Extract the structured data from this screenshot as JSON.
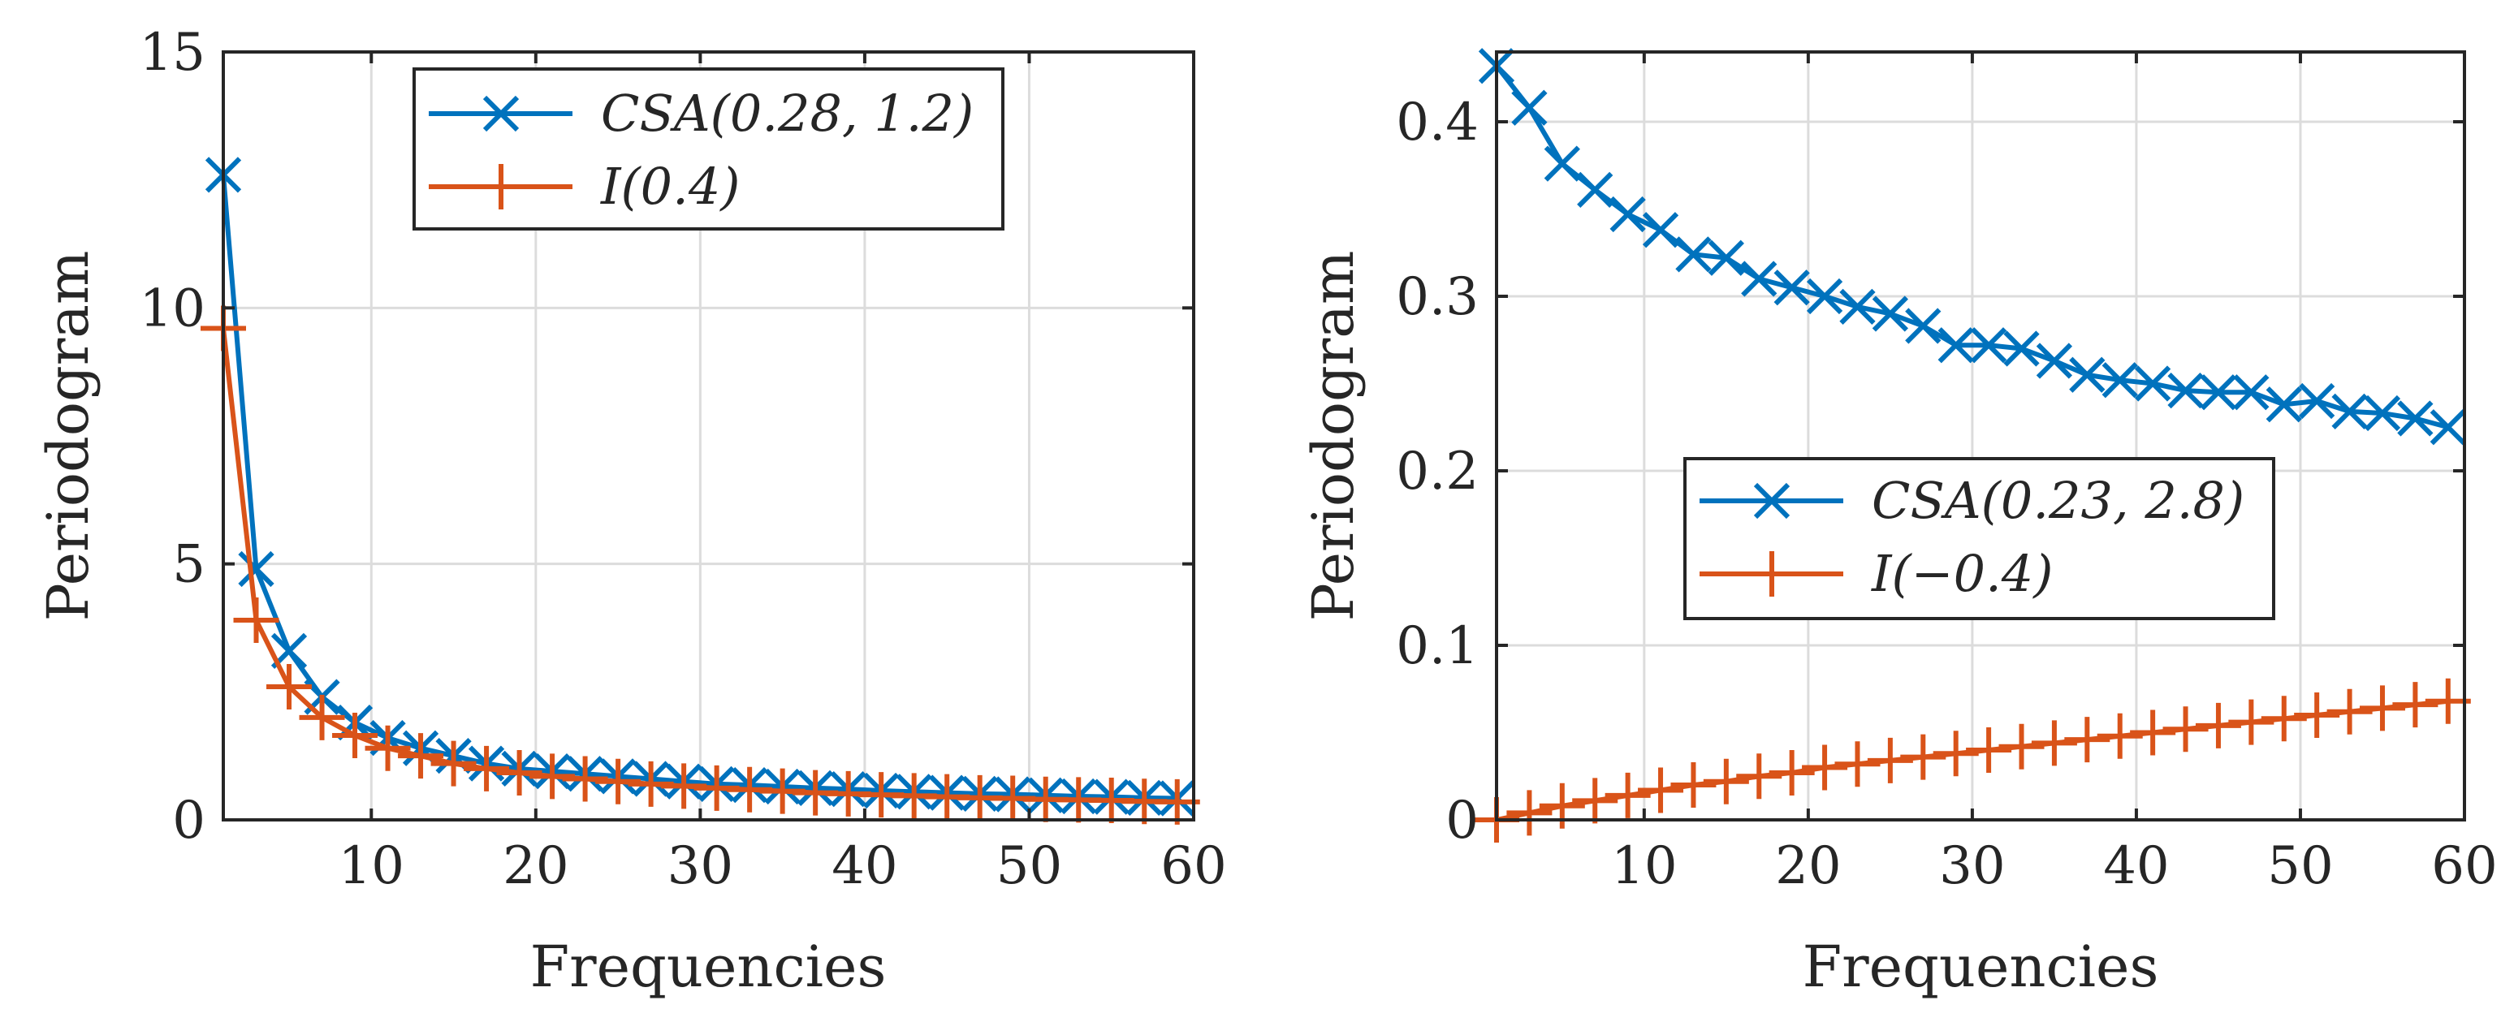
{
  "chart_data": [
    {
      "type": "line",
      "xlabel": "Frequencies",
      "ylabel": "Periodogram",
      "xlim": [
        1,
        60
      ],
      "ylim": [
        0,
        15
      ],
      "xticks": [
        10,
        20,
        30,
        40,
        50,
        60
      ],
      "yticks": [
        0,
        5,
        10,
        15
      ],
      "grid": true,
      "legend_position": "top-center",
      "series": [
        {
          "name": "CSA(0.28, 1.2)",
          "color": "#0072BD",
          "marker": "x",
          "x": [
            1,
            3,
            5,
            7,
            9,
            11,
            13,
            15,
            17,
            19,
            21,
            23,
            25,
            27,
            29,
            31,
            33,
            35,
            37,
            39,
            41,
            43,
            45,
            47,
            49,
            51,
            53,
            55,
            57,
            59
          ],
          "values": [
            12.6,
            4.9,
            3.3,
            2.4,
            1.9,
            1.6,
            1.4,
            1.25,
            1.1,
            1.0,
            0.95,
            0.9,
            0.85,
            0.8,
            0.75,
            0.7,
            0.68,
            0.65,
            0.62,
            0.6,
            0.57,
            0.55,
            0.53,
            0.51,
            0.5,
            0.48,
            0.46,
            0.45,
            0.43,
            0.42
          ]
        },
        {
          "name": "I(0.4)",
          "color": "#D95319",
          "marker": "+",
          "x": [
            1,
            3,
            5,
            7,
            9,
            11,
            13,
            15,
            17,
            19,
            21,
            23,
            25,
            27,
            29,
            31,
            33,
            35,
            37,
            39,
            41,
            43,
            45,
            47,
            49,
            51,
            53,
            55,
            57,
            59
          ],
          "values": [
            9.6,
            3.9,
            2.6,
            2.0,
            1.65,
            1.4,
            1.25,
            1.1,
            1.0,
            0.92,
            0.85,
            0.8,
            0.75,
            0.7,
            0.66,
            0.62,
            0.59,
            0.56,
            0.53,
            0.51,
            0.49,
            0.47,
            0.45,
            0.43,
            0.42,
            0.4,
            0.39,
            0.38,
            0.36,
            0.35
          ]
        }
      ]
    },
    {
      "type": "line",
      "xlabel": "Frequencies",
      "ylabel": "Periodogram",
      "xlim": [
        1,
        60
      ],
      "ylim": [
        0,
        0.44
      ],
      "xticks": [
        10,
        20,
        30,
        40,
        50,
        60
      ],
      "yticks": [
        0,
        0.1,
        0.2,
        0.3,
        0.4
      ],
      "grid": true,
      "legend_position": "center",
      "series": [
        {
          "name": "CSA(0.23, 2.8)",
          "color": "#0072BD",
          "marker": "x",
          "x": [
            1,
            3,
            5,
            7,
            9,
            11,
            13,
            15,
            17,
            19,
            21,
            23,
            25,
            27,
            29,
            31,
            33,
            35,
            37,
            39,
            41,
            43,
            45,
            47,
            49,
            51,
            53,
            55,
            57,
            59
          ],
          "values": [
            0.432,
            0.408,
            0.376,
            0.361,
            0.347,
            0.338,
            0.324,
            0.322,
            0.31,
            0.305,
            0.3,
            0.294,
            0.29,
            0.283,
            0.272,
            0.272,
            0.27,
            0.263,
            0.255,
            0.252,
            0.25,
            0.246,
            0.245,
            0.245,
            0.238,
            0.24,
            0.234,
            0.233,
            0.23,
            0.225
          ]
        },
        {
          "name": "I(−0.4)",
          "color": "#D95319",
          "marker": "+",
          "x": [
            1,
            3,
            5,
            7,
            9,
            11,
            13,
            15,
            17,
            19,
            21,
            23,
            25,
            27,
            29,
            31,
            33,
            35,
            37,
            39,
            41,
            43,
            45,
            47,
            49,
            51,
            53,
            55,
            57,
            59
          ],
          "values": [
            0.0,
            0.004,
            0.008,
            0.011,
            0.014,
            0.017,
            0.02,
            0.022,
            0.025,
            0.027,
            0.03,
            0.032,
            0.034,
            0.036,
            0.038,
            0.04,
            0.042,
            0.044,
            0.046,
            0.048,
            0.05,
            0.052,
            0.054,
            0.056,
            0.058,
            0.06,
            0.062,
            0.064,
            0.066,
            0.068
          ]
        }
      ]
    }
  ]
}
